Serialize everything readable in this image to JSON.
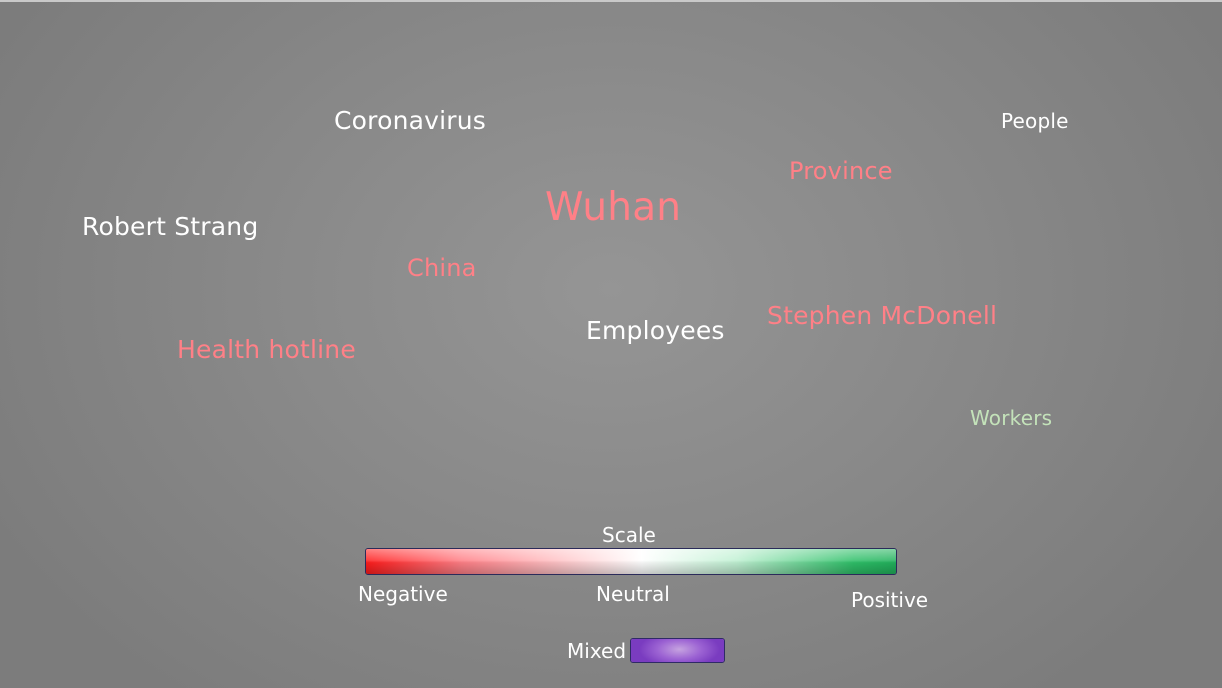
{
  "cloud": {
    "terms": [
      {
        "id": "coronavirus",
        "label": "Coronavirus",
        "sentiment": "neutral",
        "color": "#ffffff"
      },
      {
        "id": "people",
        "label": "People",
        "sentiment": "neutral",
        "color": "#ffffff"
      },
      {
        "id": "province",
        "label": "Province",
        "sentiment": "negative",
        "color": "#ff8087"
      },
      {
        "id": "wuhan",
        "label": "Wuhan",
        "sentiment": "negative",
        "color": "#ff8087"
      },
      {
        "id": "robert",
        "label": "Robert Strang",
        "sentiment": "neutral",
        "color": "#ffffff"
      },
      {
        "id": "china",
        "label": "China",
        "sentiment": "negative",
        "color": "#ff8087"
      },
      {
        "id": "stephen",
        "label": "Stephen McDonell",
        "sentiment": "negative",
        "color": "#ff8087"
      },
      {
        "id": "employees",
        "label": "Employees",
        "sentiment": "neutral",
        "color": "#ffffff"
      },
      {
        "id": "health",
        "label": "Health hotline",
        "sentiment": "negative",
        "color": "#ff8087"
      },
      {
        "id": "workers",
        "label": "Workers",
        "sentiment": "positive",
        "color": "#c4e3ba"
      }
    ]
  },
  "legend": {
    "title": "Scale",
    "negative_label": "Negative",
    "neutral_label": "Neutral",
    "positive_label": "Positive",
    "mixed_label": "Mixed",
    "colors": {
      "negative": "#ff1c1c",
      "neutral": "#ffffff",
      "positive": "#22b15c",
      "mixed": "#8a4fcb"
    }
  }
}
